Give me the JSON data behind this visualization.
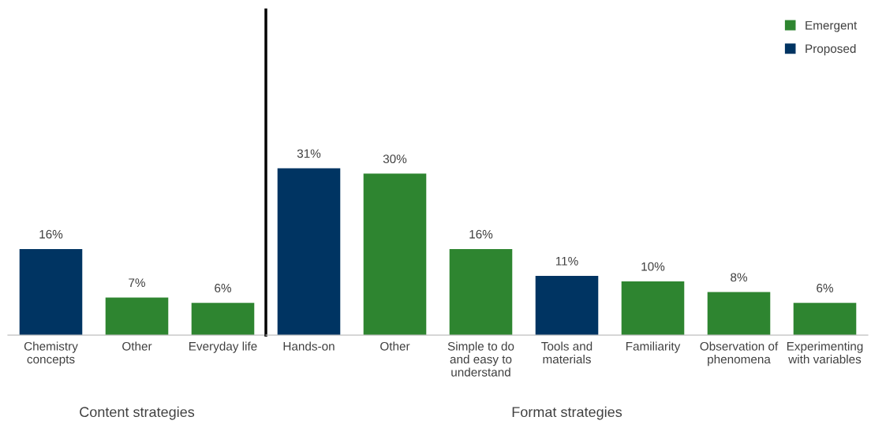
{
  "chart_data": [
    {
      "type": "bar",
      "xlabel": "Content strategies",
      "tick_labels": "x",
      "legend": false,
      "grid": false,
      "categories": [
        "Chemistry\nconcepts",
        "Other",
        "Everyday life"
      ],
      "series": [
        {
          "color": "#003462",
          "values": [
            16,
            null,
            null
          ],
          "value_labels": [
            "16%",
            null,
            null
          ]
        },
        {
          "color": "#2e8530",
          "values": [
            null,
            7,
            6
          ],
          "value_labels": [
            null,
            "7%",
            "6%"
          ]
        }
      ]
    },
    {
      "type": "bar",
      "xlabel": "Format strategies",
      "tick_labels": "x",
      "legend": "top right",
      "grid": false,
      "categories": [
        "Hands-on",
        "Other",
        "Simple to do\nand easy to\nunderstand",
        "Tools and\nmaterials",
        "Familiarity",
        "Observation of\nphenomena",
        "Experimenting\nwith variables"
      ],
      "series": [
        {
          "name": "Proposed",
          "color": "#003462",
          "values": [
            31,
            null,
            null,
            11,
            null,
            null,
            null
          ],
          "value_labels": [
            "31%",
            null,
            null,
            "11%",
            null,
            null,
            null
          ]
        },
        {
          "name": "Emergent",
          "color": "#2e8530",
          "values": [
            null,
            30,
            16,
            null,
            10,
            8,
            6
          ],
          "value_labels": [
            null,
            "30%",
            "16%",
            null,
            "10%",
            "8%",
            "6%"
          ]
        }
      ]
    }
  ]
}
